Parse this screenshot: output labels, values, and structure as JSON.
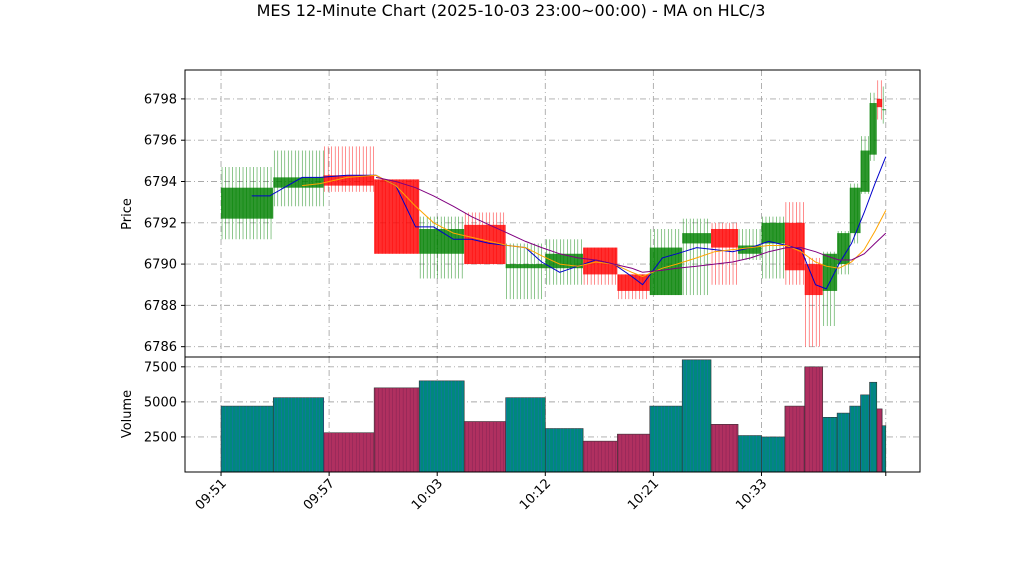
{
  "chart_data": {
    "type": "candlestick",
    "title": "MES 12-Minute Chart (2025-10-03 23:00~00:00) - MA on HLC/3",
    "price_panel": {
      "ylabel": "Price",
      "ylim": [
        6785.5,
        6799.4
      ],
      "yticks": [
        6786,
        6788,
        6790,
        6792,
        6794,
        6796,
        6798
      ],
      "grid": true
    },
    "volume_panel": {
      "ylabel": "Volume",
      "ylim": [
        0,
        8200
      ],
      "yticks": [
        2500,
        5000,
        7500
      ],
      "yticklabels": [
        "2500",
        "5000",
        "7500"
      ],
      "grid": true
    },
    "x_ticks": [
      {
        "t": 0,
        "label": "09:51"
      },
      {
        "t": 6,
        "label": "09:57"
      },
      {
        "t": 12,
        "label": "10:03"
      },
      {
        "t": 18,
        "label": "10:12"
      },
      {
        "t": 24,
        "label": "10:21"
      },
      {
        "t": 30,
        "label": "10:33"
      },
      {
        "t": 36.9,
        "label": ""
      }
    ],
    "xlim": [
      -2.0,
      38.8
    ],
    "colors": {
      "up": "#008000",
      "down": "#ff0000",
      "ma1": "#0000cc",
      "ma2": "#ffa500",
      "ma3": "#800080",
      "vol_up": "#00897b",
      "vol_down": "#b03060"
    },
    "candles": [
      {
        "t0": 0.0,
        "t1": 2.9,
        "open": 6792.2,
        "close": 6793.7,
        "high": 6794.7,
        "low": 6791.2,
        "volume": 4700
      },
      {
        "t0": 2.9,
        "t1": 5.7,
        "open": 6793.7,
        "close": 6794.2,
        "high": 6795.5,
        "low": 6792.8,
        "volume": 5300
      },
      {
        "t0": 5.7,
        "t1": 8.5,
        "open": 6794.3,
        "close": 6793.8,
        "high": 6795.7,
        "low": 6793.5,
        "volume": 2800
      },
      {
        "t0": 8.5,
        "t1": 11.0,
        "open": 6794.1,
        "close": 6790.5,
        "high": 6794.1,
        "low": 6790.5,
        "volume": 6000
      },
      {
        "t0": 11.0,
        "t1": 13.5,
        "open": 6790.5,
        "close": 6791.7,
        "high": 6792.3,
        "low": 6789.3,
        "volume": 6500
      },
      {
        "t0": 13.5,
        "t1": 15.8,
        "open": 6791.9,
        "close": 6790.0,
        "high": 6792.5,
        "low": 6790.0,
        "volume": 3600
      },
      {
        "t0": 15.8,
        "t1": 18.0,
        "open": 6789.8,
        "close": 6790.0,
        "high": 6791.0,
        "low": 6788.3,
        "volume": 5300
      },
      {
        "t0": 18.0,
        "t1": 20.1,
        "open": 6789.8,
        "close": 6790.5,
        "high": 6791.2,
        "low": 6789.0,
        "volume": 3100
      },
      {
        "t0": 20.1,
        "t1": 22.0,
        "open": 6790.8,
        "close": 6789.5,
        "high": 6790.8,
        "low": 6789.0,
        "volume": 2200
      },
      {
        "t0": 22.0,
        "t1": 23.8,
        "open": 6789.5,
        "close": 6788.7,
        "high": 6789.5,
        "low": 6788.3,
        "volume": 2700
      },
      {
        "t0": 23.8,
        "t1": 25.6,
        "open": 6788.5,
        "close": 6790.8,
        "high": 6791.7,
        "low": 6788.5,
        "volume": 4700
      },
      {
        "t0": 25.6,
        "t1": 27.2,
        "open": 6791.0,
        "close": 6791.5,
        "high": 6792.2,
        "low": 6788.5,
        "volume": 8000
      },
      {
        "t0": 27.2,
        "t1": 28.7,
        "open": 6791.7,
        "close": 6790.8,
        "high": 6792.0,
        "low": 6789.0,
        "volume": 3400
      },
      {
        "t0": 28.7,
        "t1": 30.0,
        "open": 6790.5,
        "close": 6790.9,
        "high": 6791.7,
        "low": 6790.2,
        "volume": 2600
      },
      {
        "t0": 30.0,
        "t1": 31.3,
        "open": 6791.0,
        "close": 6792.0,
        "high": 6792.3,
        "low": 6789.3,
        "volume": 2500
      },
      {
        "t0": 31.3,
        "t1": 32.4,
        "open": 6792.0,
        "close": 6789.7,
        "high": 6793.0,
        "low": 6789.0,
        "volume": 4700
      },
      {
        "t0": 32.4,
        "t1": 33.4,
        "open": 6790.0,
        "close": 6788.5,
        "high": 6790.3,
        "low": 6786.0,
        "volume": 7500
      },
      {
        "t0": 33.4,
        "t1": 34.2,
        "open": 6788.7,
        "close": 6790.5,
        "high": 6790.6,
        "low": 6787.0,
        "volume": 3900
      },
      {
        "t0": 34.2,
        "t1": 34.9,
        "open": 6790.0,
        "close": 6791.5,
        "high": 6791.6,
        "low": 6789.5,
        "volume": 4200
      },
      {
        "t0": 34.9,
        "t1": 35.5,
        "open": 6791.5,
        "close": 6793.7,
        "high": 6793.9,
        "low": 6791.0,
        "volume": 4700
      },
      {
        "t0": 35.5,
        "t1": 36.0,
        "open": 6793.5,
        "close": 6795.5,
        "high": 6796.2,
        "low": 6793.4,
        "volume": 5500
      },
      {
        "t0": 36.0,
        "t1": 36.4,
        "open": 6795.3,
        "close": 6797.8,
        "high": 6798.3,
        "low": 6795.0,
        "volume": 6400
      },
      {
        "t0": 36.4,
        "t1": 36.7,
        "open": 6798.0,
        "close": 6797.6,
        "high": 6798.9,
        "low": 6797.0,
        "volume": 4500
      },
      {
        "t0": 36.7,
        "t1": 36.9,
        "open": 6797.5,
        "close": 6797.5,
        "high": 6798.6,
        "low": 6796.8,
        "volume": 3300
      }
    ],
    "ma_series": [
      {
        "color": "#0000cc",
        "points": [
          [
            1.7,
            6793.3
          ],
          [
            2.7,
            6793.3
          ],
          [
            4.5,
            6794.2
          ],
          [
            5.5,
            6794.2
          ],
          [
            7.0,
            6794.3
          ],
          [
            8.6,
            6794.3
          ],
          [
            9.7,
            6793.8
          ],
          [
            10.8,
            6791.8
          ],
          [
            11.8,
            6791.8
          ],
          [
            12.9,
            6791.2
          ],
          [
            13.9,
            6791.2
          ],
          [
            14.9,
            6791.0
          ],
          [
            15.9,
            6790.9
          ],
          [
            16.9,
            6790.8
          ],
          [
            17.8,
            6790.1
          ],
          [
            18.8,
            6789.6
          ],
          [
            19.8,
            6789.9
          ],
          [
            20.8,
            6790.2
          ],
          [
            21.8,
            6790.0
          ],
          [
            22.8,
            6789.4
          ],
          [
            23.4,
            6789.0
          ],
          [
            24.5,
            6790.3
          ],
          [
            25.3,
            6790.5
          ],
          [
            26.4,
            6790.8
          ],
          [
            27.4,
            6790.7
          ],
          [
            28.4,
            6790.6
          ],
          [
            29.4,
            6790.8
          ],
          [
            30.4,
            6791.1
          ],
          [
            31.4,
            6790.9
          ],
          [
            32.2,
            6790.7
          ],
          [
            33.0,
            6789.0
          ],
          [
            33.6,
            6788.8
          ],
          [
            34.3,
            6790.0
          ],
          [
            35.0,
            6791.0
          ],
          [
            35.7,
            6792.5
          ],
          [
            36.3,
            6793.9
          ],
          [
            36.9,
            6795.2
          ]
        ]
      },
      {
        "color": "#ffa500",
        "points": [
          [
            4.5,
            6793.8
          ],
          [
            5.5,
            6793.9
          ],
          [
            7.0,
            6794.2
          ],
          [
            8.6,
            6794.3
          ],
          [
            9.7,
            6793.8
          ],
          [
            10.8,
            6792.8
          ],
          [
            11.8,
            6792.0
          ],
          [
            12.9,
            6791.5
          ],
          [
            13.9,
            6791.3
          ],
          [
            14.9,
            6791.1
          ],
          [
            15.9,
            6790.9
          ],
          [
            16.9,
            6790.8
          ],
          [
            17.8,
            6790.4
          ],
          [
            18.8,
            6790.0
          ],
          [
            19.8,
            6789.9
          ],
          [
            20.8,
            6790.1
          ],
          [
            21.8,
            6790.0
          ],
          [
            22.8,
            6789.6
          ],
          [
            23.4,
            6789.4
          ],
          [
            24.5,
            6789.8
          ],
          [
            25.3,
            6790.0
          ],
          [
            26.4,
            6790.3
          ],
          [
            27.4,
            6790.6
          ],
          [
            28.4,
            6790.7
          ],
          [
            29.4,
            6790.8
          ],
          [
            30.4,
            6790.9
          ],
          [
            31.4,
            6790.9
          ],
          [
            32.2,
            6790.6
          ],
          [
            33.0,
            6790.1
          ],
          [
            33.6,
            6789.9
          ],
          [
            34.3,
            6789.8
          ],
          [
            35.0,
            6790.1
          ],
          [
            35.7,
            6790.7
          ],
          [
            36.3,
            6791.6
          ],
          [
            36.9,
            6792.6
          ]
        ]
      },
      {
        "color": "#800080",
        "points": [
          [
            8.6,
            6794.2
          ],
          [
            9.7,
            6794.0
          ],
          [
            10.8,
            6793.7
          ],
          [
            11.8,
            6793.3
          ],
          [
            12.9,
            6792.8
          ],
          [
            13.9,
            6792.3
          ],
          [
            14.9,
            6791.9
          ],
          [
            15.9,
            6791.5
          ],
          [
            16.9,
            6791.1
          ],
          [
            17.8,
            6790.8
          ],
          [
            18.8,
            6790.5
          ],
          [
            19.8,
            6790.3
          ],
          [
            20.8,
            6790.2
          ],
          [
            21.8,
            6790.0
          ],
          [
            22.8,
            6789.8
          ],
          [
            23.4,
            6789.6
          ],
          [
            24.5,
            6789.7
          ],
          [
            25.3,
            6789.8
          ],
          [
            26.4,
            6789.9
          ],
          [
            27.4,
            6790.0
          ],
          [
            28.4,
            6790.1
          ],
          [
            29.4,
            6790.3
          ],
          [
            30.4,
            6790.6
          ],
          [
            31.4,
            6790.8
          ],
          [
            32.2,
            6790.8
          ],
          [
            33.0,
            6790.6
          ],
          [
            33.6,
            6790.4
          ],
          [
            34.3,
            6790.2
          ],
          [
            35.0,
            6790.2
          ],
          [
            35.7,
            6790.5
          ],
          [
            36.3,
            6791.0
          ],
          [
            36.9,
            6791.5
          ]
        ]
      }
    ]
  }
}
